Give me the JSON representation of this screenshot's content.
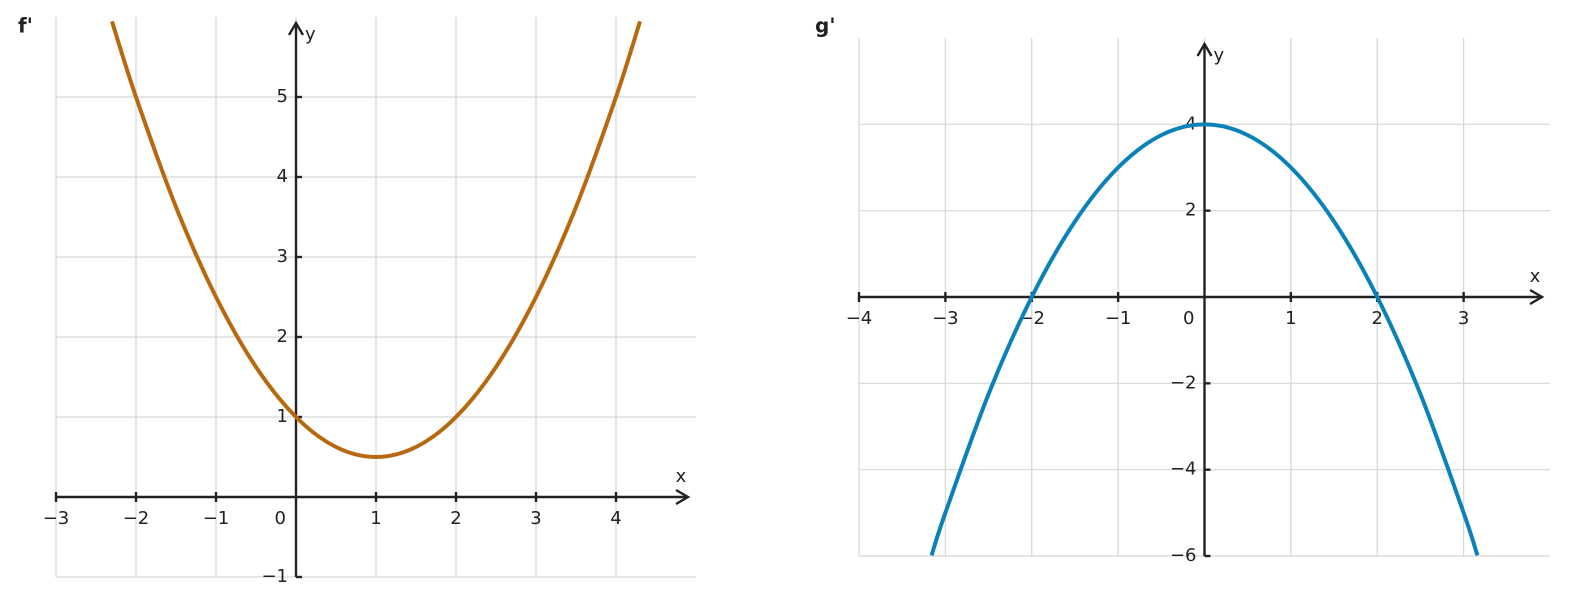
{
  "chart_data": [
    {
      "type": "line",
      "title": "f'",
      "x_label": "x",
      "y_label": "y",
      "x": [
        -2.3,
        -2,
        -1.5,
        -1,
        -0.5,
        0,
        0.5,
        1,
        1.5,
        2,
        2.5,
        3,
        3.5,
        4,
        4.3
      ],
      "series": [
        {
          "name": "f'",
          "color": "#b8690f",
          "values": [
            5.945,
            5,
            3.625,
            2.5,
            1.625,
            1,
            0.625,
            0.5,
            0.625,
            1,
            1.625,
            2.5,
            3.625,
            5,
            5.945
          ]
        }
      ],
      "xlim": [
        -3,
        5
      ],
      "ylim": [
        -1,
        6
      ],
      "xticks": [
        {
          "value": -3,
          "label": "−3"
        },
        {
          "value": -2,
          "label": "−2"
        },
        {
          "value": -1,
          "label": "−1"
        },
        0,
        1,
        2,
        3,
        4
      ],
      "yticks": [
        {
          "value": -1,
          "label": "−1"
        },
        1,
        2,
        3,
        4,
        5
      ],
      "grid": true
    },
    {
      "type": "line",
      "title": "g'",
      "x_label": "x",
      "y_label": "y",
      "x": [
        -3.16,
        -3,
        -2.5,
        -2,
        -1.5,
        -1,
        -0.5,
        0,
        0.5,
        1,
        1.5,
        2,
        2.5,
        3,
        3.16
      ],
      "series": [
        {
          "name": "g'",
          "color": "#0a82b8",
          "values": [
            -5.9856,
            -5,
            -2.25,
            0,
            1.75,
            3,
            3.75,
            4,
            3.75,
            3,
            1.75,
            0,
            -2.25,
            -5,
            -5.9856
          ]
        }
      ],
      "xlim": [
        -4,
        4
      ],
      "ylim": [
        -6,
        6
      ],
      "xticks": [
        {
          "value": -4,
          "label": "−4"
        },
        {
          "value": -3,
          "label": "−3"
        },
        {
          "value": -2,
          "label": "−2"
        },
        {
          "value": -1,
          "label": "−1"
        },
        0,
        1,
        2,
        3
      ],
      "yticks": [
        {
          "value": -6,
          "label": "−6"
        },
        {
          "value": -4,
          "label": "−4"
        },
        {
          "value": -2,
          "label": "−2"
        },
        2,
        4
      ],
      "grid": true
    }
  ]
}
